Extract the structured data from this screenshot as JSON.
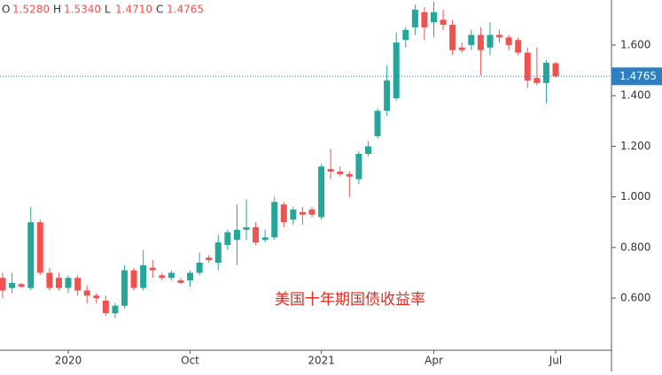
{
  "chart_data": {
    "type": "candlestick",
    "annotation": "美国十年期国债收益率",
    "header": {
      "labels": [
        "O",
        "H",
        "L",
        "C"
      ],
      "value_labels": [
        "1.5280",
        "1.5340",
        "1.4710",
        "1.4765"
      ]
    },
    "categories": [
      null,
      null,
      null,
      null,
      null,
      null,
      null,
      "2020",
      null,
      null,
      null,
      null,
      null,
      null,
      null,
      null,
      null,
      null,
      null,
      null,
      "Oct",
      null,
      null,
      null,
      null,
      null,
      null,
      null,
      null,
      null,
      null,
      null,
      null,
      null,
      "2021",
      null,
      null,
      null,
      null,
      null,
      null,
      null,
      null,
      null,
      null,
      null,
      "Apr",
      null,
      null,
      null,
      null,
      null,
      null,
      null,
      null,
      null,
      null,
      null,
      null,
      "Jul"
    ],
    "open": [
      0.68,
      0.64,
      0.655,
      0.64,
      0.9,
      0.7,
      0.68,
      0.64,
      0.68,
      0.63,
      0.61,
      0.59,
      0.54,
      0.57,
      0.71,
      0.64,
      0.72,
      0.69,
      0.68,
      0.67,
      0.67,
      0.7,
      0.76,
      0.74,
      0.81,
      0.83,
      0.87,
      0.88,
      0.83,
      0.84,
      0.97,
      0.91,
      0.94,
      0.95,
      0.92,
      1.11,
      1.1,
      1.09,
      1.07,
      1.17,
      1.24,
      1.34,
      1.39,
      1.62,
      1.67,
      1.73,
      1.69,
      1.7,
      1.68,
      1.59,
      1.6,
      1.64,
      1.59,
      1.64,
      1.63,
      1.62,
      1.57,
      1.47,
      1.45,
      1.528
    ],
    "high": [
      0.7,
      0.7,
      0.66,
      0.96,
      0.91,
      0.72,
      0.7,
      0.69,
      0.69,
      0.65,
      0.62,
      0.61,
      0.58,
      0.73,
      0.72,
      0.79,
      0.75,
      0.7,
      0.71,
      0.68,
      0.71,
      0.78,
      0.77,
      0.85,
      0.87,
      0.97,
      0.99,
      0.9,
      0.87,
      1.0,
      0.98,
      0.96,
      0.96,
      0.96,
      1.13,
      1.19,
      1.12,
      1.1,
      1.18,
      1.22,
      1.35,
      1.52,
      1.65,
      1.67,
      1.76,
      1.75,
      1.77,
      1.74,
      1.7,
      1.61,
      1.66,
      1.67,
      1.69,
      1.66,
      1.64,
      1.63,
      1.59,
      1.59,
      1.54,
      1.534
    ],
    "low": [
      0.6,
      0.62,
      0.64,
      0.63,
      0.69,
      0.63,
      0.63,
      0.62,
      0.61,
      0.58,
      0.58,
      0.53,
      0.52,
      0.56,
      0.63,
      0.63,
      0.68,
      0.67,
      0.67,
      0.655,
      0.645,
      0.69,
      0.74,
      0.71,
      0.79,
      0.73,
      0.83,
      0.81,
      0.82,
      0.83,
      0.88,
      0.89,
      0.89,
      0.92,
      0.91,
      1.07,
      1.08,
      1.0,
      1.05,
      1.16,
      1.23,
      1.32,
      1.38,
      1.59,
      1.64,
      1.62,
      1.63,
      1.66,
      1.56,
      1.57,
      1.58,
      1.48,
      1.56,
      1.61,
      1.58,
      1.56,
      1.43,
      1.44,
      1.37,
      1.471
    ],
    "close": [
      0.63,
      0.66,
      0.645,
      0.9,
      0.7,
      0.64,
      0.64,
      0.68,
      0.63,
      0.61,
      0.6,
      0.54,
      0.57,
      0.71,
      0.64,
      0.73,
      0.71,
      0.68,
      0.7,
      0.66,
      0.7,
      0.74,
      0.75,
      0.82,
      0.86,
      0.87,
      0.88,
      0.82,
      0.84,
      0.98,
      0.9,
      0.95,
      0.93,
      0.93,
      1.12,
      1.1,
      1.09,
      1.08,
      1.17,
      1.2,
      1.34,
      1.46,
      1.61,
      1.66,
      1.74,
      1.67,
      1.73,
      1.68,
      1.58,
      1.58,
      1.64,
      1.58,
      1.64,
      1.63,
      1.6,
      1.57,
      1.46,
      1.45,
      1.53,
      1.4765
    ],
    "up_color": "#26a69a",
    "down_color": "#ef5350",
    "ylim": [
      0.394,
      1.778
    ],
    "yticks": [
      {
        "value": 0.6,
        "label": "0.600"
      },
      {
        "value": 0.8,
        "label": "0.800"
      },
      {
        "value": 1.0,
        "label": "1.000"
      },
      {
        "value": 1.2,
        "label": "1.200"
      },
      {
        "value": 1.4,
        "label": "1.400"
      },
      {
        "value": 1.6,
        "label": "1.600"
      }
    ]
  }
}
